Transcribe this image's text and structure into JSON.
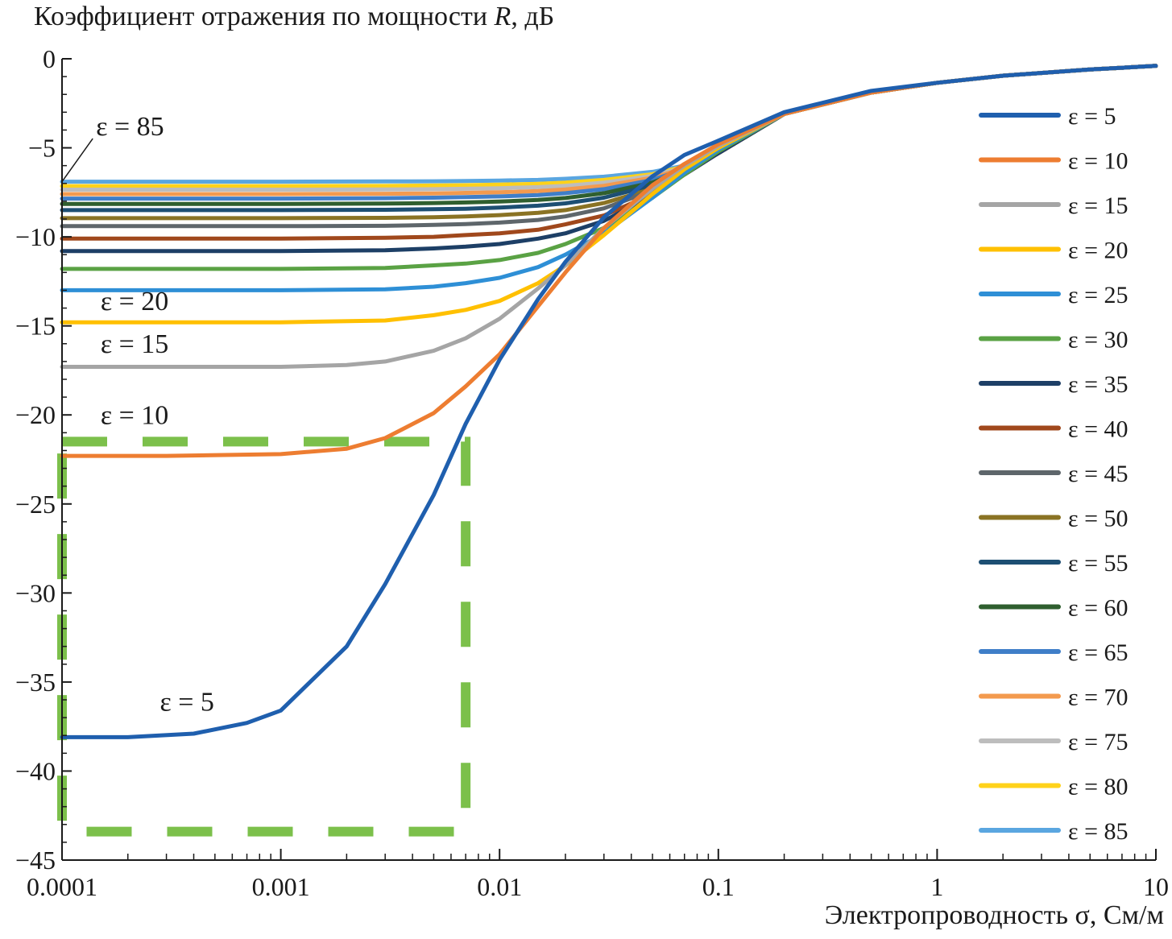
{
  "chart_data": {
    "type": "line",
    "title": "",
    "ylabel": "Коэффициент отражения по мощности R, дБ",
    "ylabel_parts": {
      "before": "Коэффициент отражения по мощности ",
      "italic": "R",
      "after": ", дБ"
    },
    "xlabel": "Электропроводность σ, См/м",
    "xscale": "log",
    "xlim": [
      0.0001,
      10
    ],
    "ylim": [
      -45,
      0
    ],
    "x_ticks": [
      {
        "value": 0.0001,
        "label": "0.0001"
      },
      {
        "value": 0.001,
        "label": "0.001"
      },
      {
        "value": 0.01,
        "label": "0.01"
      },
      {
        "value": 0.1,
        "label": "0.1"
      },
      {
        "value": 1,
        "label": "1"
      },
      {
        "value": 10,
        "label": "10"
      }
    ],
    "y_ticks": [
      {
        "value": 0,
        "label": "0"
      },
      {
        "value": -5,
        "label": "−5"
      },
      {
        "value": -10,
        "label": "−10"
      },
      {
        "value": -15,
        "label": "−15"
      },
      {
        "value": -20,
        "label": "−20"
      },
      {
        "value": -25,
        "label": "−25"
      },
      {
        "value": -30,
        "label": "−30"
      },
      {
        "value": -35,
        "label": "−35"
      },
      {
        "value": -40,
        "label": "−40"
      },
      {
        "value": -45,
        "label": "−45"
      }
    ],
    "legend_position": "right",
    "series": [
      {
        "name": "ε = 5",
        "color": "#1f5fae",
        "x": [
          0.0001,
          0.0002,
          0.0004,
          0.0007,
          0.001,
          0.002,
          0.003,
          0.005,
          0.007,
          0.01,
          0.015,
          0.02,
          0.03,
          0.05,
          0.07,
          0.1,
          0.2,
          0.5,
          1,
          2,
          5,
          10
        ],
        "y": [
          -38.1,
          -38.1,
          -37.9,
          -37.3,
          -36.6,
          -33,
          -29.5,
          -24.5,
          -20.5,
          -16.9,
          -13.5,
          -11.4,
          -8.9,
          -6.6,
          -5.4,
          -4.6,
          -3.0,
          -1.8,
          -1.35,
          -0.95,
          -0.6,
          -0.4
        ]
      },
      {
        "name": "ε = 10",
        "color": "#ed7d31",
        "x": [
          0.0001,
          0.0003,
          0.001,
          0.002,
          0.003,
          0.005,
          0.007,
          0.01,
          0.015,
          0.02,
          0.03,
          0.05,
          0.07,
          0.1,
          0.2,
          0.5,
          1,
          2,
          5,
          10
        ],
        "y": [
          -22.3,
          -22.3,
          -22.2,
          -21.9,
          -21.3,
          -19.9,
          -18.4,
          -16.6,
          -13.9,
          -12.0,
          -9.5,
          -7.1,
          -5.9,
          -4.8,
          -3.1,
          -1.9,
          -1.35,
          -0.95,
          -0.6,
          -0.4
        ]
      },
      {
        "name": "ε = 15",
        "color": "#a5a5a5",
        "x": [
          0.0001,
          0.001,
          0.002,
          0.003,
          0.005,
          0.007,
          0.01,
          0.015,
          0.02,
          0.03,
          0.05,
          0.07,
          0.1,
          0.2,
          0.5,
          1,
          2,
          5,
          10
        ],
        "y": [
          -17.3,
          -17.3,
          -17.2,
          -17.0,
          -16.4,
          -15.7,
          -14.6,
          -12.9,
          -11.6,
          -9.5,
          -7.3,
          -6.0,
          -4.9,
          -3.1,
          -1.9,
          -1.35,
          -0.95,
          -0.6,
          -0.4
        ]
      },
      {
        "name": "ε = 20",
        "color": "#ffc000",
        "x": [
          0.0001,
          0.001,
          0.003,
          0.005,
          0.007,
          0.01,
          0.015,
          0.02,
          0.03,
          0.05,
          0.07,
          0.1,
          0.2,
          0.5,
          1,
          2,
          5,
          10
        ],
        "y": [
          -14.8,
          -14.8,
          -14.7,
          -14.4,
          -14.1,
          -13.6,
          -12.6,
          -11.6,
          -9.9,
          -7.6,
          -6.2,
          -5.0,
          -3.1,
          -1.9,
          -1.35,
          -0.95,
          -0.6,
          -0.4
        ]
      },
      {
        "name": "ε = 25",
        "color": "#2e8fd6",
        "x": [
          0.0001,
          0.001,
          0.003,
          0.005,
          0.007,
          0.01,
          0.015,
          0.02,
          0.03,
          0.05,
          0.07,
          0.1,
          0.2,
          0.5,
          1,
          2,
          5,
          10
        ],
        "y": [
          -13.0,
          -13.0,
          -12.95,
          -12.8,
          -12.6,
          -12.3,
          -11.7,
          -11.0,
          -9.8,
          -7.8,
          -6.4,
          -5.1,
          -3.1,
          -1.9,
          -1.35,
          -0.95,
          -0.6,
          -0.4
        ]
      },
      {
        "name": "ε = 30",
        "color": "#5aa244",
        "x": [
          0.0001,
          0.001,
          0.003,
          0.005,
          0.007,
          0.01,
          0.015,
          0.02,
          0.03,
          0.05,
          0.07,
          0.1,
          0.2,
          0.5,
          1,
          2,
          5,
          10
        ],
        "y": [
          -11.8,
          -11.8,
          -11.75,
          -11.6,
          -11.5,
          -11.3,
          -10.9,
          -10.4,
          -9.5,
          -7.8,
          -6.5,
          -5.2,
          -3.1,
          -1.9,
          -1.35,
          -0.95,
          -0.6,
          -0.4
        ]
      },
      {
        "name": "ε = 35",
        "color": "#1d3f66",
        "x": [
          0.0001,
          0.001,
          0.003,
          0.005,
          0.007,
          0.01,
          0.015,
          0.02,
          0.03,
          0.05,
          0.07,
          0.1,
          0.2,
          0.5,
          1,
          2,
          5,
          10
        ],
        "y": [
          -10.8,
          -10.8,
          -10.75,
          -10.65,
          -10.55,
          -10.4,
          -10.1,
          -9.8,
          -9.1,
          -7.7,
          -6.5,
          -5.3,
          -3.1,
          -1.9,
          -1.35,
          -0.95,
          -0.6,
          -0.4
        ]
      },
      {
        "name": "ε = 40",
        "color": "#a0481c",
        "x": [
          0.0001,
          0.001,
          0.003,
          0.005,
          0.007,
          0.01,
          0.015,
          0.02,
          0.03,
          0.05,
          0.07,
          0.1,
          0.2,
          0.5,
          1,
          2,
          5,
          10
        ],
        "y": [
          -10.1,
          -10.1,
          -10.05,
          -10.0,
          -9.9,
          -9.8,
          -9.6,
          -9.3,
          -8.8,
          -7.6,
          -6.5,
          -5.3,
          -3.1,
          -1.9,
          -1.35,
          -0.95,
          -0.6,
          -0.4
        ]
      },
      {
        "name": "ε = 45",
        "color": "#5e666b",
        "x": [
          0.0001,
          0.001,
          0.003,
          0.005,
          0.007,
          0.01,
          0.015,
          0.02,
          0.03,
          0.05,
          0.07,
          0.1,
          0.2,
          0.5,
          1,
          2,
          5,
          10
        ],
        "y": [
          -9.4,
          -9.4,
          -9.38,
          -9.33,
          -9.28,
          -9.2,
          -9.05,
          -8.85,
          -8.4,
          -7.4,
          -6.4,
          -5.3,
          -3.1,
          -1.9,
          -1.35,
          -0.95,
          -0.6,
          -0.4
        ]
      },
      {
        "name": "ε = 50",
        "color": "#8a7324",
        "x": [
          0.0001,
          0.001,
          0.003,
          0.005,
          0.007,
          0.01,
          0.015,
          0.02,
          0.03,
          0.05,
          0.07,
          0.1,
          0.2,
          0.5,
          1,
          2,
          5,
          10
        ],
        "y": [
          -8.95,
          -8.95,
          -8.93,
          -8.9,
          -8.85,
          -8.78,
          -8.65,
          -8.5,
          -8.1,
          -7.3,
          -6.4,
          -5.3,
          -3.1,
          -1.9,
          -1.35,
          -0.95,
          -0.6,
          -0.4
        ]
      },
      {
        "name": "ε = 55",
        "color": "#1d4f73",
        "x": [
          0.0001,
          0.001,
          0.003,
          0.005,
          0.007,
          0.01,
          0.015,
          0.02,
          0.03,
          0.05,
          0.07,
          0.1,
          0.2,
          0.5,
          1,
          2,
          5,
          10
        ],
        "y": [
          -8.5,
          -8.5,
          -8.48,
          -8.45,
          -8.42,
          -8.36,
          -8.25,
          -8.12,
          -7.8,
          -7.1,
          -6.3,
          -5.3,
          -3.1,
          -1.9,
          -1.35,
          -0.95,
          -0.6,
          -0.4
        ]
      },
      {
        "name": "ε = 60",
        "color": "#2f5f2f",
        "x": [
          0.0001,
          0.001,
          0.003,
          0.005,
          0.007,
          0.01,
          0.015,
          0.02,
          0.03,
          0.05,
          0.07,
          0.1,
          0.2,
          0.5,
          1,
          2,
          5,
          10
        ],
        "y": [
          -8.15,
          -8.15,
          -8.13,
          -8.1,
          -8.07,
          -8.02,
          -7.93,
          -7.82,
          -7.55,
          -6.95,
          -6.25,
          -5.3,
          -3.1,
          -1.9,
          -1.35,
          -0.95,
          -0.6,
          -0.4
        ]
      },
      {
        "name": "ε = 65",
        "color": "#3f7ec8",
        "x": [
          0.0001,
          0.001,
          0.003,
          0.005,
          0.007,
          0.01,
          0.015,
          0.02,
          0.03,
          0.05,
          0.07,
          0.1,
          0.2,
          0.5,
          1,
          2,
          5,
          10
        ],
        "y": [
          -7.85,
          -7.85,
          -7.83,
          -7.8,
          -7.77,
          -7.73,
          -7.65,
          -7.55,
          -7.32,
          -6.8,
          -6.2,
          -5.3,
          -3.1,
          -1.9,
          -1.35,
          -0.95,
          -0.6,
          -0.4
        ]
      },
      {
        "name": "ε = 70",
        "color": "#f39a4e",
        "x": [
          0.0001,
          0.001,
          0.003,
          0.005,
          0.007,
          0.01,
          0.015,
          0.02,
          0.03,
          0.05,
          0.07,
          0.1,
          0.2,
          0.5,
          1,
          2,
          5,
          10
        ],
        "y": [
          -7.6,
          -7.6,
          -7.58,
          -7.56,
          -7.53,
          -7.5,
          -7.43,
          -7.34,
          -7.13,
          -6.68,
          -6.15,
          -5.3,
          -3.1,
          -1.9,
          -1.35,
          -0.95,
          -0.6,
          -0.4
        ]
      },
      {
        "name": "ε = 75",
        "color": "#bdbdbd",
        "x": [
          0.0001,
          0.001,
          0.003,
          0.005,
          0.007,
          0.01,
          0.015,
          0.02,
          0.03,
          0.05,
          0.07,
          0.1,
          0.2,
          0.5,
          1,
          2,
          5,
          10
        ],
        "y": [
          -7.35,
          -7.35,
          -7.34,
          -7.32,
          -7.3,
          -7.27,
          -7.21,
          -7.13,
          -6.95,
          -6.57,
          -6.1,
          -5.3,
          -3.1,
          -1.9,
          -1.35,
          -0.95,
          -0.6,
          -0.4
        ]
      },
      {
        "name": "ε = 80",
        "color": "#ffd21a",
        "x": [
          0.0001,
          0.001,
          0.003,
          0.005,
          0.007,
          0.01,
          0.015,
          0.02,
          0.03,
          0.05,
          0.07,
          0.1,
          0.2,
          0.5,
          1,
          2,
          5,
          10
        ],
        "y": [
          -7.15,
          -7.15,
          -7.14,
          -7.12,
          -7.1,
          -7.07,
          -7.02,
          -6.95,
          -6.8,
          -6.48,
          -6.05,
          -5.3,
          -3.1,
          -1.9,
          -1.35,
          -0.95,
          -0.6,
          -0.4
        ]
      },
      {
        "name": "ε = 85",
        "color": "#5aa6e0",
        "x": [
          0.0001,
          0.001,
          0.003,
          0.005,
          0.007,
          0.01,
          0.015,
          0.02,
          0.03,
          0.05,
          0.07,
          0.1,
          0.2,
          0.5,
          1,
          2,
          5,
          10
        ],
        "y": [
          -6.9,
          -6.9,
          -6.89,
          -6.88,
          -6.86,
          -6.84,
          -6.8,
          -6.74,
          -6.62,
          -6.35,
          -6.0,
          -5.3,
          -3.1,
          -1.9,
          -1.35,
          -0.95,
          -0.6,
          -0.4
        ]
      }
    ],
    "annotations": [
      {
        "text": "ε = 85",
        "target": {
          "x": 0.0001,
          "y": -6.9
        },
        "pointer": true,
        "anchor": {
          "x": 0.000143,
          "y": -4.3
        }
      },
      {
        "text": "ε = 20",
        "anchor": {
          "x": 0.00015,
          "y": -14.1
        }
      },
      {
        "text": "ε = 15",
        "anchor": {
          "x": 0.00015,
          "y": -16.5
        }
      },
      {
        "text": "ε = 10",
        "anchor": {
          "x": 0.00015,
          "y": -20.5
        }
      },
      {
        "text": "ε = 5",
        "anchor": {
          "x": 0.00028,
          "y": -36.6
        }
      }
    ],
    "highlight_box": {
      "color": "#7cc04b",
      "x_range": [
        0.0001,
        0.007
      ],
      "y_range": [
        -43.4,
        -21.5
      ],
      "style": "dashed"
    }
  }
}
